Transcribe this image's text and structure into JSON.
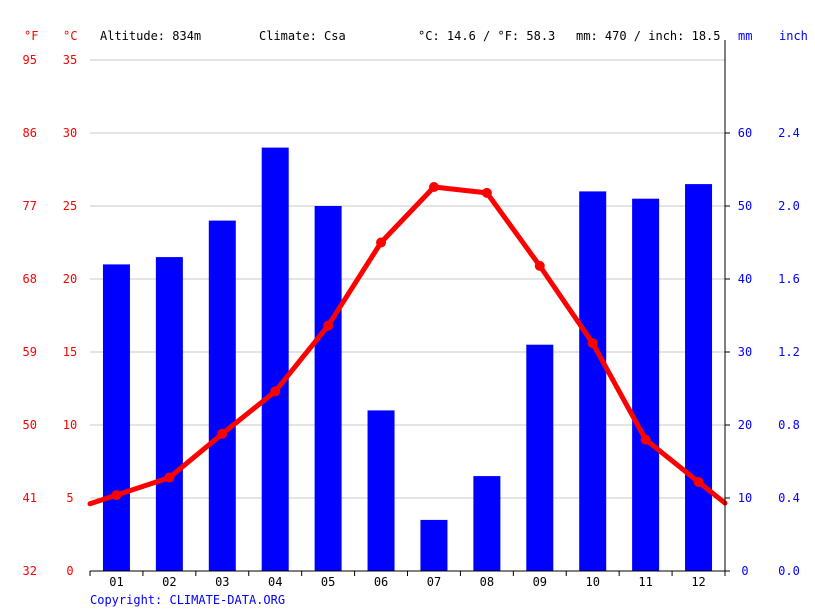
{
  "header": {
    "unit_f": "°F",
    "unit_c": "°C",
    "altitude": "Altitude: 834m",
    "climate": "Climate: Csa",
    "temp_avg": "°C: 14.6 / °F: 58.3",
    "precip_total": "mm: 470 / inch: 18.5",
    "unit_mm": "mm",
    "unit_inch": "inch"
  },
  "footer": {
    "copyright": "Copyright: CLIMATE-DATA.ORG"
  },
  "colors": {
    "temperature": "#ff0000",
    "precipitation": "#0000ff",
    "grid": "#c8c8c8"
  },
  "chart_data": {
    "type": "bar",
    "categories": [
      "01",
      "02",
      "03",
      "04",
      "05",
      "06",
      "07",
      "08",
      "09",
      "10",
      "11",
      "12"
    ],
    "series": [
      {
        "kind": "bar",
        "axis": "right",
        "unit": "mm",
        "values": [
          42,
          43,
          48,
          58,
          50,
          22,
          7,
          13,
          31,
          52,
          51,
          53
        ]
      },
      {
        "kind": "line",
        "axis": "left",
        "unit": "°C",
        "values": [
          5.2,
          6.4,
          9.4,
          12.3,
          16.8,
          22.5,
          26.3,
          25.9,
          20.9,
          15.6,
          9.0,
          6.1
        ]
      }
    ],
    "left_axis_c": {
      "ticks": [
        0,
        5,
        10,
        15,
        20,
        25,
        30,
        35
      ],
      "ylim": [
        0,
        35
      ]
    },
    "left_axis_f": {
      "ticks": [
        32,
        41,
        50,
        59,
        68,
        77,
        86,
        95
      ]
    },
    "right_axis_mm": {
      "ticks": [
        0,
        10,
        20,
        30,
        40,
        50,
        60
      ],
      "ylim": [
        0,
        70
      ]
    },
    "right_axis_inch": {
      "ticks": [
        "0.0",
        "0.4",
        "0.8",
        "1.2",
        "1.6",
        "2.0",
        "2.4"
      ]
    },
    "grid": true
  }
}
